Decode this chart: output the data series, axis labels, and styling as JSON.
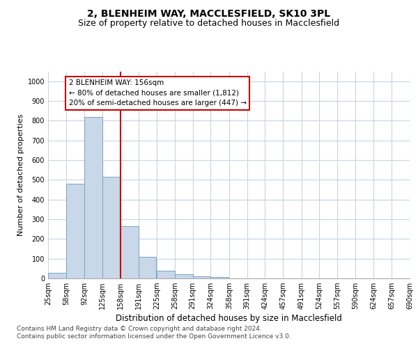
{
  "title1": "2, BLENHEIM WAY, MACCLESFIELD, SK10 3PL",
  "title2": "Size of property relative to detached houses in Macclesfield",
  "xlabel": "Distribution of detached houses by size in Macclesfield",
  "ylabel": "Number of detached properties",
  "bar_values": [
    28,
    480,
    820,
    515,
    265,
    110,
    38,
    20,
    10,
    8,
    0,
    0,
    0,
    0,
    0,
    0,
    0,
    0,
    0,
    0
  ],
  "bin_edges": [
    25,
    58,
    92,
    125,
    158,
    191,
    225,
    258,
    291,
    324,
    358,
    391,
    424,
    457,
    491,
    524,
    557,
    590,
    624,
    657,
    690
  ],
  "tick_labels": [
    "25sqm",
    "58sqm",
    "92sqm",
    "125sqm",
    "158sqm",
    "191sqm",
    "225sqm",
    "258sqm",
    "291sqm",
    "324sqm",
    "358sqm",
    "391sqm",
    "424sqm",
    "457sqm",
    "491sqm",
    "524sqm",
    "557sqm",
    "590sqm",
    "624sqm",
    "657sqm",
    "690sqm"
  ],
  "bar_color": "#c8d8e8",
  "bar_edgecolor": "#7aa4c4",
  "vline_x": 158,
  "vline_color": "#cc0000",
  "annotation_line1": "2 BLENHEIM WAY: 156sqm",
  "annotation_line2": "← 80% of detached houses are smaller (1,812)",
  "annotation_line3": "20% of semi-detached houses are larger (447) →",
  "annotation_box_color": "#ffffff",
  "annotation_box_edgecolor": "#cc0000",
  "ylim": [
    0,
    1050
  ],
  "yticks": [
    0,
    100,
    200,
    300,
    400,
    500,
    600,
    700,
    800,
    900,
    1000
  ],
  "footer_text": "Contains HM Land Registry data © Crown copyright and database right 2024.\nContains public sector information licensed under the Open Government Licence v3.0.",
  "background_color": "#ffffff",
  "grid_color": "#c8d4e4",
  "title1_fontsize": 10,
  "title2_fontsize": 9,
  "xlabel_fontsize": 8.5,
  "ylabel_fontsize": 8,
  "tick_fontsize": 7,
  "annot_fontsize": 7.5,
  "footer_fontsize": 6.5
}
